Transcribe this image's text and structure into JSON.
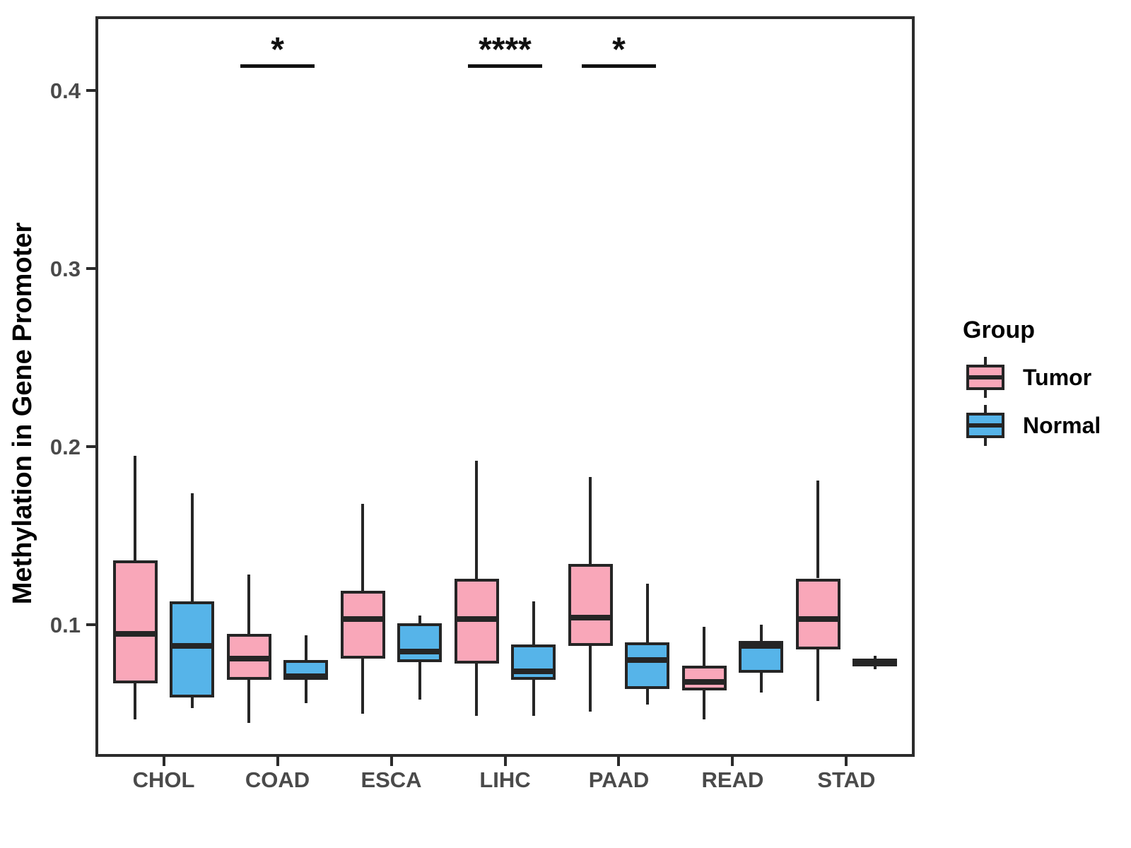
{
  "y_axis": {
    "label": "Methylation in Gene Promoter",
    "ticks": [
      0.1,
      0.2,
      0.3,
      0.4
    ],
    "tick_labels": [
      "0.1",
      "0.2",
      "0.3",
      "0.4"
    ]
  },
  "x_axis": {
    "categories": [
      "CHOL",
      "COAD",
      "ESCA",
      "LIHC",
      "PAAD",
      "READ",
      "STAD"
    ]
  },
  "legend": {
    "title": "Group",
    "items": [
      {
        "label": "Tumor",
        "color": "#F9A7B9"
      },
      {
        "label": "Normal",
        "color": "#56B4E9"
      }
    ]
  },
  "colors": {
    "stroke": "#252525",
    "panel_border": "#2b2b2b",
    "tick_text": "#4a4a4a"
  },
  "chart_data": {
    "type": "boxplot",
    "title": "",
    "xlabel": "",
    "ylabel": "Methylation in Gene Promoter",
    "ylim": [
      0.0258,
      0.4417
    ],
    "grid": false,
    "legend_position": "right",
    "categories": [
      "CHOL",
      "COAD",
      "ESCA",
      "LIHC",
      "PAAD",
      "READ",
      "STAD"
    ],
    "series": [
      {
        "name": "Tumor",
        "color": "#F9A7B9",
        "boxes": [
          {
            "category": "CHOL",
            "whisker_low": 0.047,
            "q1": 0.067,
            "median": 0.095,
            "q3": 0.136,
            "whisker_high": 0.195
          },
          {
            "category": "COAD",
            "whisker_low": 0.045,
            "q1": 0.069,
            "median": 0.081,
            "q3": 0.095,
            "whisker_high": 0.128
          },
          {
            "category": "ESCA",
            "whisker_low": 0.05,
            "q1": 0.081,
            "median": 0.103,
            "q3": 0.119,
            "whisker_high": 0.168
          },
          {
            "category": "LIHC",
            "whisker_low": 0.049,
            "q1": 0.078,
            "median": 0.103,
            "q3": 0.126,
            "whisker_high": 0.192
          },
          {
            "category": "PAAD",
            "whisker_low": 0.051,
            "q1": 0.088,
            "median": 0.104,
            "q3": 0.134,
            "whisker_high": 0.183
          },
          {
            "category": "READ",
            "whisker_low": 0.047,
            "q1": 0.063,
            "median": 0.068,
            "q3": 0.077,
            "whisker_high": 0.099
          },
          {
            "category": "STAD",
            "whisker_low": 0.057,
            "q1": 0.086,
            "median": 0.103,
            "q3": 0.126,
            "whisker_high": 0.181
          }
        ]
      },
      {
        "name": "Normal",
        "color": "#56B4E9",
        "boxes": [
          {
            "category": "CHOL",
            "whisker_low": 0.053,
            "q1": 0.059,
            "median": 0.088,
            "q3": 0.113,
            "whisker_high": 0.174
          },
          {
            "category": "COAD",
            "whisker_low": 0.056,
            "q1": 0.069,
            "median": 0.071,
            "q3": 0.08,
            "whisker_high": 0.094
          },
          {
            "category": "ESCA",
            "whisker_low": 0.058,
            "q1": 0.079,
            "median": 0.085,
            "q3": 0.101,
            "whisker_high": 0.105
          },
          {
            "category": "LIHC",
            "whisker_low": 0.049,
            "q1": 0.069,
            "median": 0.074,
            "q3": 0.089,
            "whisker_high": 0.113
          },
          {
            "category": "PAAD",
            "whisker_low": 0.055,
            "q1": 0.064,
            "median": 0.08,
            "q3": 0.09,
            "whisker_high": 0.123
          },
          {
            "category": "READ",
            "whisker_low": 0.062,
            "q1": 0.073,
            "median": 0.088,
            "q3": 0.091,
            "whisker_high": 0.1
          },
          {
            "category": "STAD",
            "whisker_low": 0.075,
            "q1": 0.0765,
            "median": 0.079,
            "q3": 0.081,
            "whisker_high": 0.0825
          }
        ]
      }
    ],
    "annotations": [
      {
        "category": "COAD",
        "label": "*"
      },
      {
        "category": "LIHC",
        "label": "****"
      },
      {
        "category": "PAAD",
        "label": "*"
      }
    ],
    "annotation_line_y": 0.414
  }
}
